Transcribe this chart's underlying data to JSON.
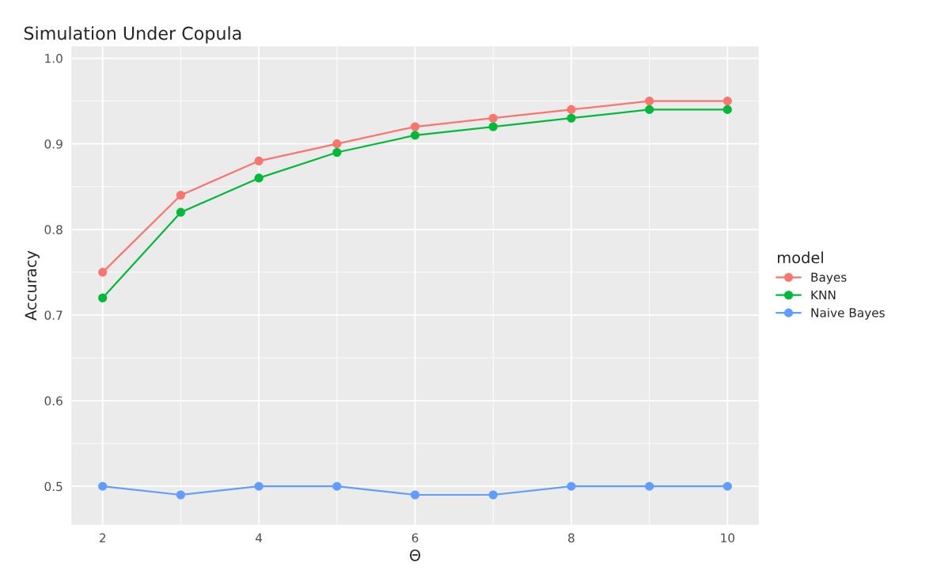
{
  "chart_data": {
    "type": "line",
    "title": "Simulation Under Copula",
    "xlabel": "Θ",
    "ylabel": "Accuracy",
    "legend_title": "model",
    "x": [
      2,
      3,
      4,
      5,
      6,
      7,
      8,
      9,
      10
    ],
    "series": [
      {
        "name": "Bayes",
        "color": "#f8766d",
        "values": [
          0.75,
          0.84,
          0.88,
          0.9,
          0.92,
          0.93,
          0.94,
          0.95,
          0.95
        ]
      },
      {
        "name": "KNN",
        "color": "#00ba38",
        "values": [
          0.72,
          0.82,
          0.86,
          0.89,
          0.91,
          0.92,
          0.93,
          0.94,
          0.94
        ]
      },
      {
        "name": "Naive Bayes",
        "color": "#619cff",
        "values": [
          0.5,
          0.49,
          0.5,
          0.5,
          0.49,
          0.49,
          0.5,
          0.5,
          0.5
        ]
      }
    ],
    "xlim": [
      1.6,
      10.4
    ],
    "xticks": [
      2,
      4,
      6,
      8,
      10
    ],
    "ylim": [
      0.455,
      1.014
    ],
    "yticks": [
      {
        "value": 0.5,
        "label": "0.5"
      },
      {
        "value": 0.6,
        "label": "0.6"
      },
      {
        "value": 0.7,
        "label": "0.7"
      },
      {
        "value": 0.8,
        "label": "0.8"
      },
      {
        "value": 0.9,
        "label": "0.9"
      },
      {
        "value": 1.0,
        "label": "1.0"
      }
    ],
    "grid": true,
    "legend": "right",
    "marker": "circle",
    "line_style": "solid"
  }
}
